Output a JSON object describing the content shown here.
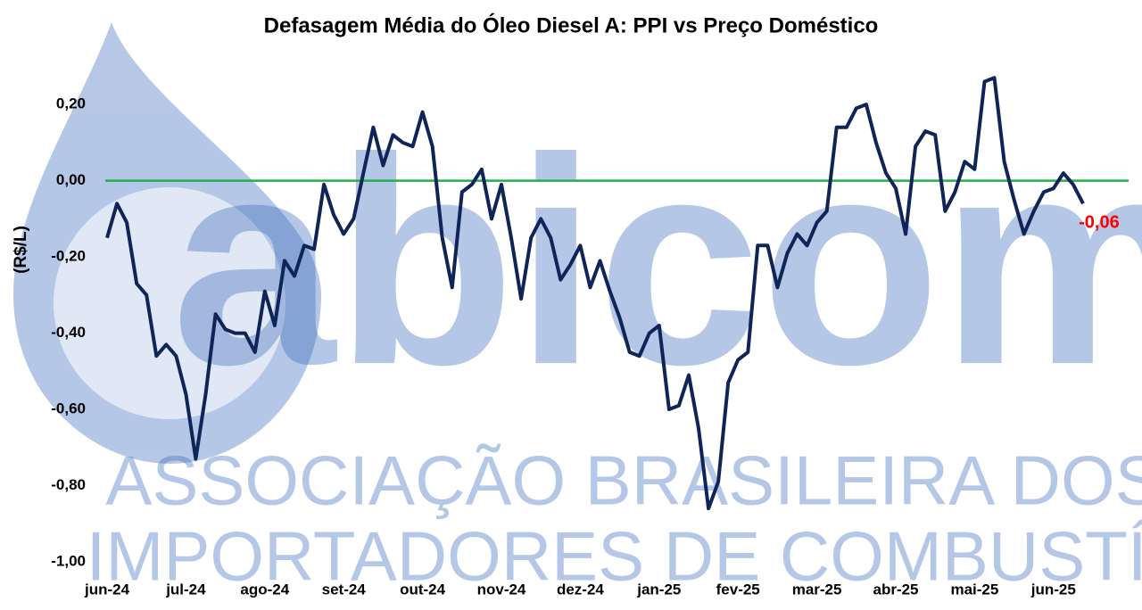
{
  "chart_data": {
    "type": "line",
    "title": "Defasagem Média do Óleo Diesel A: PPI vs Preço Doméstico",
    "y_label": "(R$/L)",
    "watermark": [
      "abicom",
      "ASSOCIAÇÃO BRASILEIRA DOS",
      "IMPORTADORES DE COMBUSTÍVEIS"
    ],
    "categories": [
      "jun-24",
      null,
      null,
      null,
      null,
      null,
      null,
      null,
      "jul-24",
      null,
      null,
      null,
      null,
      null,
      null,
      null,
      "ago-24",
      null,
      null,
      null,
      null,
      null,
      null,
      null,
      "set-24",
      null,
      null,
      null,
      null,
      null,
      null,
      null,
      "out-24",
      null,
      null,
      null,
      null,
      null,
      null,
      null,
      "nov-24",
      null,
      null,
      null,
      null,
      null,
      null,
      null,
      "dez-24",
      null,
      null,
      null,
      null,
      null,
      null,
      null,
      "jan-25",
      null,
      null,
      null,
      null,
      null,
      null,
      null,
      "fev-25",
      null,
      null,
      null,
      null,
      null,
      null,
      null,
      "mar-25",
      null,
      null,
      null,
      null,
      null,
      null,
      null,
      "abr-25",
      null,
      null,
      null,
      null,
      null,
      null,
      null,
      "mai-25",
      null,
      null,
      null,
      null,
      null,
      null,
      null,
      "jun-25",
      null,
      null,
      null
    ],
    "series": [
      {
        "color": "#0f2557",
        "values": [
          -0.15,
          -0.06,
          -0.11,
          -0.27,
          -0.3,
          -0.46,
          -0.43,
          -0.46,
          -0.56,
          -0.73,
          -0.56,
          -0.35,
          -0.39,
          -0.4,
          -0.4,
          -0.45,
          -0.29,
          -0.38,
          -0.21,
          -0.25,
          -0.17,
          -0.18,
          -0.01,
          -0.09,
          -0.14,
          -0.1,
          0.02,
          0.14,
          0.04,
          0.12,
          0.1,
          0.09,
          0.18,
          0.09,
          -0.15,
          -0.28,
          -0.03,
          -0.01,
          0.03,
          -0.1,
          -0.01,
          -0.15,
          -0.31,
          -0.15,
          -0.1,
          -0.15,
          -0.26,
          -0.22,
          -0.17,
          -0.28,
          -0.21,
          -0.29,
          -0.36,
          -0.45,
          -0.46,
          -0.4,
          -0.38,
          -0.6,
          -0.59,
          -0.51,
          -0.65,
          -0.86,
          -0.79,
          -0.53,
          -0.47,
          -0.45,
          -0.17,
          -0.17,
          -0.28,
          -0.19,
          -0.14,
          -0.17,
          -0.11,
          -0.08,
          0.14,
          0.14,
          0.19,
          0.2,
          0.1,
          0.02,
          -0.02,
          -0.14,
          0.09,
          0.13,
          0.12,
          -0.08,
          -0.03,
          0.05,
          0.03,
          0.26,
          0.27,
          0.05,
          -0.05,
          -0.14,
          -0.08,
          -0.03,
          -0.02,
          0.02,
          -0.01,
          -0.06
        ]
      }
    ],
    "reference_line": {
      "value": 0,
      "color": "#22b04c"
    },
    "end_label": {
      "text": "-0,06",
      "color": "#ff0000"
    },
    "ylim": [
      -1.0,
      0.3
    ],
    "yticks": [
      {
        "value": -1.0,
        "label": "-1,00"
      },
      {
        "value": -0.8,
        "label": "-0,80"
      },
      {
        "value": -0.6,
        "label": "-0,60"
      },
      {
        "value": -0.4,
        "label": "-0,40"
      },
      {
        "value": -0.2,
        "label": "-0,20"
      },
      {
        "value": 0,
        "label": "0,00"
      },
      {
        "value": 0.2,
        "label": "0,20"
      }
    ],
    "grid": false
  }
}
